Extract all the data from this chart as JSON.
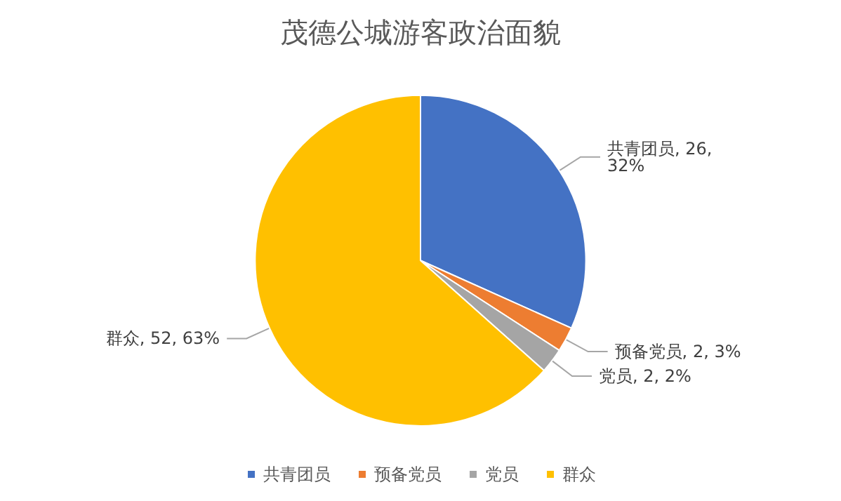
{
  "chart_data": {
    "type": "pie",
    "title": "茂德公城游客政治面貌",
    "categories": [
      "共青团员",
      "预备党员",
      "党员",
      "群众"
    ],
    "values": [
      26,
      2,
      2,
      52
    ],
    "colors": [
      "#4472c4",
      "#ed7d31",
      "#a5a5a5",
      "#ffc000"
    ],
    "value_labels": [
      "共青团员, 26, 32%",
      "预备党员, 2, 3%",
      "党员, 2, 2%",
      "群众, 52, 63%"
    ],
    "legend": "bottom"
  }
}
